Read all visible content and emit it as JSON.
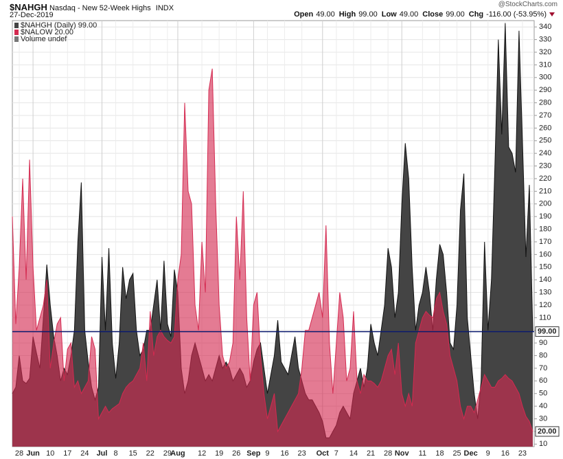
{
  "chart_data": {
    "type": "area",
    "symbol": "$NAHGH",
    "title": "Nasdaq - New 52-Week Highs",
    "exchange": "INDX",
    "date": "27-Dec-2019",
    "watermark": "@StockCharts.com",
    "quote": [
      {
        "label": "Open",
        "value": "49.00"
      },
      {
        "label": "High",
        "value": "99.00"
      },
      {
        "label": "Low",
        "value": "49.00"
      },
      {
        "label": "Close",
        "value": "99.00"
      },
      {
        "label": "Chg",
        "value": "-116.00 (-53.95%)"
      }
    ],
    "volume_label": "Volume undef",
    "ylim": [
      8,
      345
    ],
    "yticks": [
      10,
      20,
      30,
      40,
      50,
      60,
      70,
      80,
      90,
      100,
      110,
      120,
      130,
      140,
      150,
      160,
      170,
      180,
      190,
      200,
      210,
      220,
      230,
      240,
      250,
      260,
      270,
      280,
      290,
      300,
      310,
      320,
      330,
      340
    ],
    "grid": true,
    "categories": [
      null,
      null,
      "28",
      null,
      null,
      null,
      "Jun",
      null,
      null,
      null,
      null,
      "10",
      null,
      null,
      null,
      null,
      "17",
      null,
      null,
      null,
      null,
      "24",
      null,
      null,
      null,
      null,
      "Jul",
      null,
      null,
      null,
      "8",
      null,
      null,
      null,
      null,
      "15",
      null,
      null,
      null,
      null,
      "22",
      null,
      null,
      null,
      null,
      "29",
      null,
      null,
      "Aug",
      null,
      null,
      null,
      null,
      null,
      null,
      "12",
      null,
      null,
      null,
      null,
      "19",
      null,
      null,
      null,
      null,
      "26",
      null,
      null,
      null,
      null,
      "Sep",
      null,
      null,
      null,
      "9",
      null,
      null,
      null,
      null,
      "16",
      null,
      null,
      null,
      null,
      "23",
      null,
      null,
      null,
      null,
      null,
      "Oct",
      null,
      null,
      null,
      "7",
      null,
      null,
      null,
      null,
      "14",
      null,
      null,
      null,
      null,
      "21",
      null,
      null,
      null,
      null,
      "28",
      null,
      null,
      null,
      "Nov",
      null,
      null,
      null,
      null,
      null,
      "11",
      null,
      null,
      null,
      null,
      "18",
      null,
      null,
      null,
      null,
      "25",
      null,
      null,
      null,
      "Dec",
      null,
      null,
      null,
      null,
      "9",
      null,
      null,
      null,
      null,
      "16",
      null,
      null,
      null,
      null,
      "23",
      null,
      null,
      null
    ],
    "series": [
      {
        "name": "$NAHGH (Daily) 99.00",
        "color": "#444444",
        "last_label": "99.00",
        "values": [
          50,
          55,
          80,
          60,
          58,
          62,
          95,
          82,
          70,
          110,
          152,
          120,
          95,
          80,
          60,
          70,
          65,
          80,
          100,
          170,
          217,
          100,
          75,
          55,
          45,
          55,
          158,
          100,
          165,
          90,
          62,
          90,
          150,
          125,
          140,
          145,
          100,
          80,
          85,
          100,
          100,
          120,
          140,
          100,
          155,
          105,
          95,
          148,
          130,
          70,
          50,
          60,
          80,
          90,
          80,
          70,
          60,
          65,
          60,
          70,
          80,
          70,
          75,
          70,
          60,
          65,
          70,
          65,
          55,
          60,
          75,
          85,
          90,
          70,
          50,
          65,
          80,
          108,
          75,
          70,
          65,
          80,
          95,
          70,
          60,
          50,
          45,
          45,
          40,
          35,
          28,
          15,
          15,
          20,
          25,
          35,
          40,
          35,
          30,
          50,
          60,
          70,
          55,
          70,
          105,
          90,
          80,
          100,
          120,
          165,
          150,
          110,
          130,
          200,
          248,
          220,
          150,
          100,
          120,
          130,
          150,
          130,
          100,
          140,
          168,
          160,
          130,
          90,
          85,
          120,
          195,
          224,
          110,
          80,
          50,
          30,
          60,
          170,
          100,
          140,
          230,
          330,
          255,
          343,
          245,
          240,
          225,
          337,
          250,
          158,
          215,
          99
        ]
      },
      {
        "name": "$NALOW 20.00",
        "color": "#d42a50",
        "last_label": "20.00",
        "values": [
          190,
          105,
          150,
          220,
          140,
          235,
          150,
          100,
          110,
          120,
          140,
          70,
          90,
          105,
          110,
          60,
          85,
          90,
          55,
          60,
          50,
          55,
          60,
          95,
          85,
          30,
          35,
          40,
          35,
          38,
          40,
          42,
          50,
          55,
          58,
          60,
          65,
          70,
          90,
          60,
          115,
          80,
          95,
          100,
          95,
          92,
          90,
          95,
          140,
          160,
          280,
          210,
          200,
          120,
          100,
          170,
          130,
          290,
          307,
          200,
          120,
          80,
          70,
          75,
          90,
          190,
          140,
          210,
          110,
          60,
          120,
          130,
          80,
          50,
          30,
          40,
          50,
          20,
          25,
          30,
          35,
          40,
          45,
          50,
          70,
          100,
          100,
          110,
          120,
          130,
          110,
          183,
          90,
          50,
          90,
          130,
          110,
          60,
          70,
          115,
          60,
          50,
          65,
          60,
          60,
          58,
          55,
          60,
          70,
          80,
          85,
          65,
          90,
          50,
          40,
          50,
          40,
          90,
          100,
          110,
          115,
          112,
          110,
          125,
          130,
          115,
          105,
          80,
          70,
          60,
          40,
          30,
          40,
          40,
          35,
          45,
          55,
          65,
          60,
          55,
          55,
          60,
          62,
          65,
          62,
          60,
          55,
          50,
          40,
          32,
          28,
          20
        ]
      }
    ]
  }
}
